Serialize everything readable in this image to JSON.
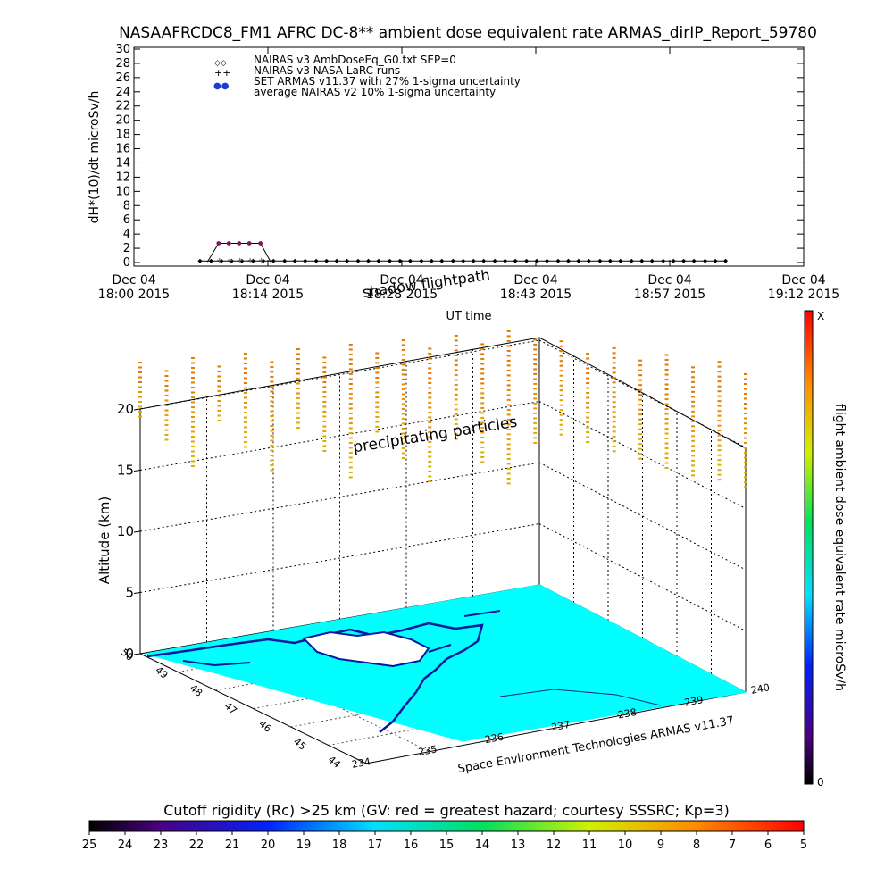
{
  "chart_data": [
    {
      "type": "line",
      "title": "NASAAFRCDC8_FM1 AFRC DC-8** ambient dose equivalent rate ARMAS_dirIP_Report_59780",
      "ylabel": "dH*(10)/dt microSv/h",
      "xlabel": "UT time",
      "ylim": [
        0,
        30
      ],
      "yticks": [
        "0",
        "2",
        "4",
        "6",
        "8",
        "10",
        "12",
        "14",
        "16",
        "18",
        "20",
        "22",
        "24",
        "26",
        "28",
        "30"
      ],
      "xticks": [
        {
          "day": "Dec 04",
          "time": "18:00 2015"
        },
        {
          "day": "Dec 04",
          "time": "18:14 2015"
        },
        {
          "day": "Dec 04",
          "time": "18:28 2015"
        },
        {
          "day": "Dec 04",
          "time": "18:43 2015"
        },
        {
          "day": "Dec 04",
          "time": "18:57 2015"
        },
        {
          "day": "Dec 04",
          "time": "19:12 2015"
        }
      ],
      "xlim_minutes": [
        0,
        72
      ],
      "legend": [
        {
          "symbol": "◇◇",
          "label": "NAIRAS v3 AmbDoseEq_G0.txt SEP=0"
        },
        {
          "symbol": "++",
          "label": "NAIRAS v3 NASA LaRC runs"
        },
        {
          "symbol": "●●",
          "label": "SET ARMAS v11.37 with 27% 1-sigma uncertainty"
        },
        {
          "symbol": "",
          "label": "average NAIRAS v2 10% 1-sigma uncertainty"
        }
      ],
      "legend_position": "top-left",
      "series": [
        {
          "name": "SET ARMAS v11.37 with 27% 1-sigma uncertainty",
          "color": "#7a1a5a",
          "x": [
            9.1,
            10.2,
            11.3,
            12.4,
            13.6
          ],
          "y": [
            2.7,
            2.7,
            2.7,
            2.7,
            2.7
          ]
        },
        {
          "name": "NAIRAS v3 AmbDoseEq_G0.txt SEP=0",
          "x": [
            7.1,
            8.3,
            9.4,
            10.5,
            11.6,
            12.8,
            13.9,
            15.0,
            16.2,
            17.3,
            18.4,
            19.6,
            20.7,
            21.8,
            22.9,
            24.1,
            25.2,
            26.3,
            27.5,
            28.6,
            29.7,
            30.9,
            32.0,
            33.1,
            34.3,
            35.4,
            36.5,
            37.6,
            38.8,
            39.9,
            41.0,
            42.2,
            43.3,
            44.4,
            45.6,
            46.7,
            47.8,
            48.9,
            50.1,
            51.2,
            52.3,
            53.5,
            54.6,
            55.7,
            56.9,
            58.0,
            59.1,
            60.2,
            61.4,
            62.5,
            63.6
          ],
          "y": [
            0.1,
            0.1,
            0.1,
            0.1,
            0.1,
            0.1,
            0.1,
            0.1,
            0.1,
            0.1,
            0.1,
            0.1,
            0.1,
            0.1,
            0.1,
            0.1,
            0.1,
            0.1,
            0.1,
            0.1,
            0.1,
            0.1,
            0.1,
            0.1,
            0.1,
            0.1,
            0.1,
            0.1,
            0.1,
            0.1,
            0.1,
            0.1,
            0.1,
            0.1,
            0.1,
            0.1,
            0.1,
            0.1,
            0.1,
            0.1,
            0.1,
            0.1,
            0.1,
            0.1,
            0.1,
            0.1,
            0.1,
            0.1,
            0.1,
            0.1,
            0.1
          ]
        },
        {
          "name": "NAIRAS v3 NASA LaRC runs",
          "x": [
            9.1,
            10.2,
            11.3,
            12.4,
            13.6
          ],
          "y": [
            0.2,
            0.2,
            0.2,
            0.2,
            0.2
          ]
        }
      ]
    },
    {
      "type": "scatter",
      "title_3d": "shadow flightpath",
      "annotation": "precipitating particles",
      "zlabel": "Altitude (km)",
      "zticks": [
        "0",
        "5",
        "10",
        "15",
        "20"
      ],
      "lat_ticks": [
        "50",
        "49",
        "48",
        "47",
        "46",
        "45",
        "44"
      ],
      "lon_ticks": [
        "234",
        "235",
        "236",
        "237",
        "238",
        "239",
        "240"
      ],
      "credit": "Space Environment Technologies ARMAS v11.37",
      "colorbar_right_label": "flight ambient dose equivalent rate microSv/h",
      "colorbar_right_top": "X",
      "colorbar_right_bottom": "0",
      "particle_columns": 24
    },
    {
      "type": "heatmap",
      "colorbar_label": "Cutoff rigidity (Rc) >25 km (GV: red = greatest hazard; courtesy SSSRC; Kp=3)",
      "colorbar_ticks": [
        "25",
        "24",
        "23",
        "22",
        "21",
        "20",
        "19",
        "18",
        "17",
        "16",
        "15",
        "14",
        "13",
        "12",
        "11",
        "10",
        "9",
        "8",
        "7",
        "6",
        "5"
      ]
    }
  ]
}
